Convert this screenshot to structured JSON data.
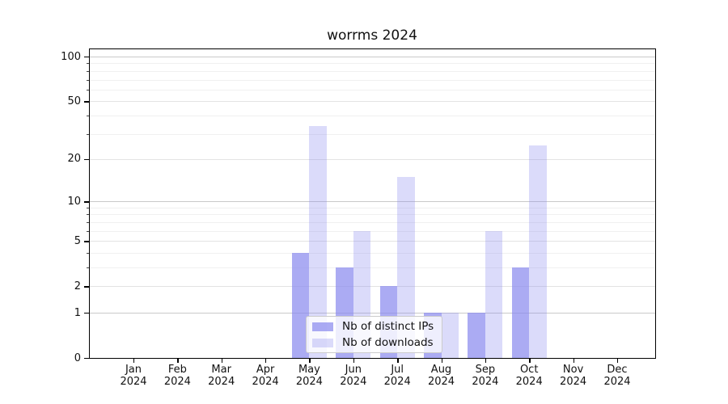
{
  "title": "worrms 2024",
  "chart_data": {
    "type": "bar",
    "title": "worrms 2024",
    "categories": [
      "Jan",
      "Feb",
      "Mar",
      "Apr",
      "May",
      "Jun",
      "Jul",
      "Aug",
      "Sep",
      "Oct",
      "Nov",
      "Dec"
    ],
    "year_label": "2024",
    "series": [
      {
        "name": "Nb of distinct IPs",
        "color": "#8888ee",
        "alpha": 0.7,
        "values": [
          0,
          0,
          0,
          0,
          4,
          3,
          2,
          1,
          1,
          3,
          0,
          0
        ]
      },
      {
        "name": "Nb of downloads",
        "color": "#8888ee",
        "alpha": 0.3,
        "values": [
          0,
          0,
          0,
          0,
          34,
          6,
          15,
          1,
          6,
          25,
          0,
          0
        ]
      }
    ],
    "xlabel": "",
    "ylabel": "",
    "yscale": "log10(x+1)",
    "ylim": [
      0,
      113
    ],
    "yticks": [
      0,
      1,
      2,
      5,
      10,
      20,
      50,
      100
    ],
    "yticklabels": [
      "0",
      "1",
      "2",
      "5",
      "10",
      "20",
      "50",
      "100"
    ],
    "minor_yticks": [
      3,
      4,
      6,
      7,
      8,
      9,
      30,
      40,
      60,
      70,
      80,
      90
    ],
    "grid": true,
    "legend_position": "lower-center"
  }
}
